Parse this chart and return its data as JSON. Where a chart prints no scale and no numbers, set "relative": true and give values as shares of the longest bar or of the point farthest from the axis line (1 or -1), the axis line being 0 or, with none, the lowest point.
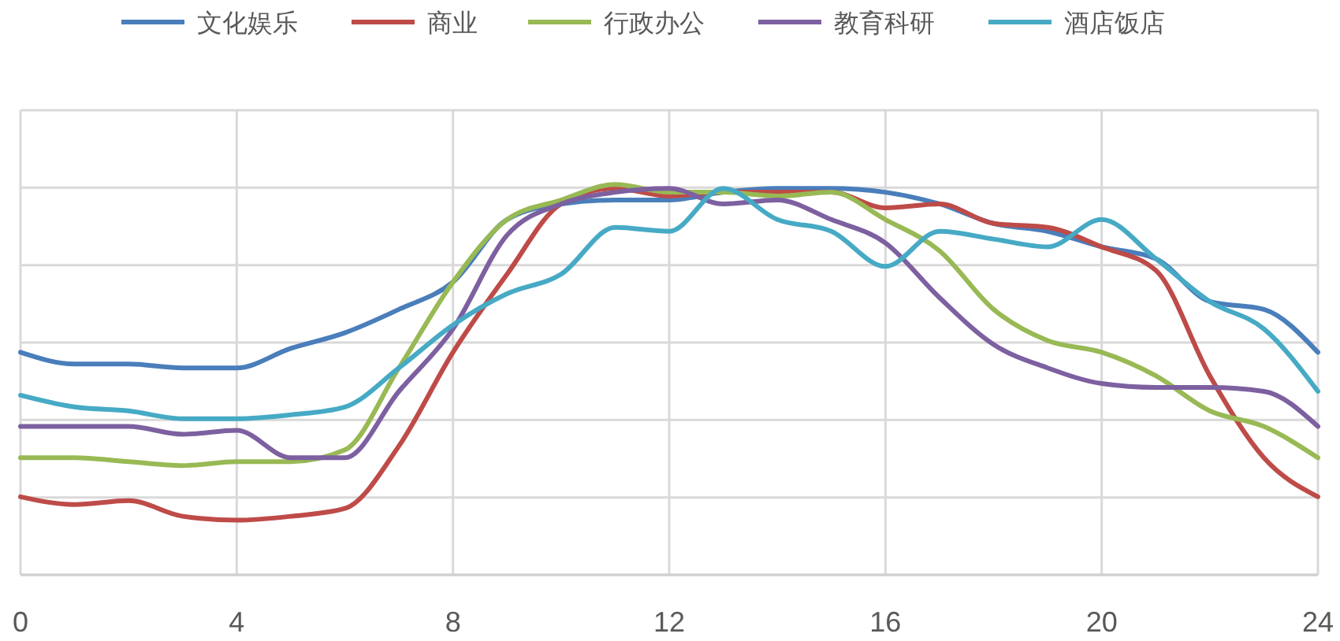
{
  "chart_data": {
    "type": "line",
    "relative": true,
    "x": [
      0,
      1,
      2,
      3,
      4,
      5,
      6,
      7,
      8,
      9,
      10,
      11,
      12,
      13,
      14,
      15,
      16,
      17,
      18,
      19,
      20,
      21,
      22,
      23,
      24
    ],
    "xlim": [
      0,
      24
    ],
    "xticks": [
      0,
      4,
      8,
      12,
      16,
      20,
      24
    ],
    "grid": true,
    "legend": "top",
    "marker": "none",
    "line_style": "solid",
    "series": [
      {
        "name": "文化娱乐",
        "color": "#4a7ebb",
        "values": [
          0.57,
          0.54,
          0.54,
          0.53,
          0.53,
          0.58,
          0.62,
          0.68,
          0.75,
          0.91,
          0.95,
          0.96,
          0.96,
          0.98,
          0.99,
          0.99,
          0.98,
          0.95,
          0.9,
          0.88,
          0.84,
          0.81,
          0.7,
          0.68,
          0.57
        ]
      },
      {
        "name": "商业",
        "color": "#be4b48",
        "values": [
          0.2,
          0.18,
          0.19,
          0.15,
          0.14,
          0.15,
          0.17,
          0.33,
          0.57,
          0.77,
          0.95,
          0.99,
          0.97,
          0.98,
          0.98,
          0.98,
          0.94,
          0.95,
          0.9,
          0.89,
          0.84,
          0.78,
          0.51,
          0.3,
          0.2
        ]
      },
      {
        "name": "行政办公",
        "color": "#98b954",
        "values": [
          0.3,
          0.3,
          0.29,
          0.28,
          0.29,
          0.29,
          0.32,
          0.53,
          0.75,
          0.91,
          0.96,
          1,
          0.98,
          0.98,
          0.97,
          0.98,
          0.91,
          0.83,
          0.68,
          0.6,
          0.57,
          0.51,
          0.42,
          0.38,
          0.3
        ]
      },
      {
        "name": "教育科研",
        "color": "#7d60a0",
        "values": [
          0.38,
          0.38,
          0.38,
          0.36,
          0.37,
          0.3,
          0.3,
          0.47,
          0.63,
          0.87,
          0.95,
          0.98,
          0.99,
          0.95,
          0.96,
          0.91,
          0.85,
          0.71,
          0.59,
          0.53,
          0.49,
          0.48,
          0.48,
          0.47,
          0.38
        ]
      },
      {
        "name": "酒店饭店",
        "color": "#46aac5",
        "values": [
          0.46,
          0.43,
          0.42,
          0.4,
          0.4,
          0.41,
          0.43,
          0.53,
          0.64,
          0.72,
          0.77,
          0.89,
          0.88,
          0.99,
          0.91,
          0.88,
          0.79,
          0.88,
          0.86,
          0.84,
          0.91,
          0.81,
          0.7,
          0.63,
          0.47
        ]
      }
    ]
  }
}
